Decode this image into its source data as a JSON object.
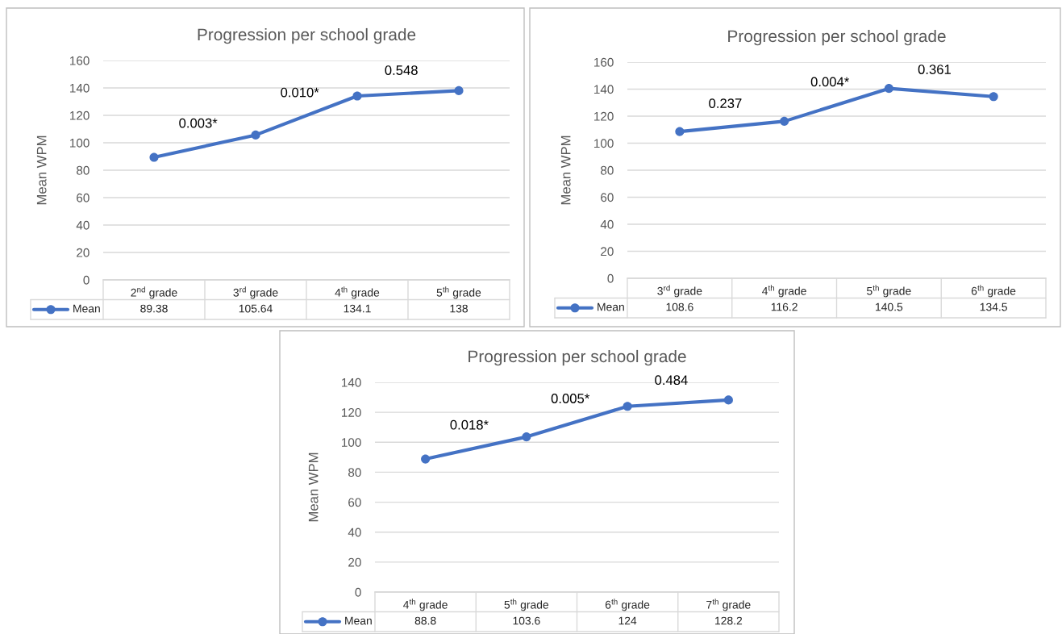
{
  "chart_data": [
    {
      "type": "line",
      "title": "Progression per school grade",
      "ylabel": "Mean WPM",
      "categories": [
        "2$^{nd}$ grade",
        "3$^{rd}$ grade",
        "4$^{th}$ grade",
        "5$^{th}$ grade"
      ],
      "series": [
        {
          "name": "Mean",
          "color": "#4472c4",
          "values": [
            89.38,
            105.64,
            134.1,
            138
          ]
        }
      ],
      "ylim": [
        0,
        160
      ],
      "yticks": [
        0,
        20,
        40,
        60,
        80,
        100,
        120,
        140,
        160
      ],
      "grid": "y",
      "marker": "circle",
      "data_labels": true,
      "legend": "bottom",
      "annotations": [
        "0.003*",
        "0.010*",
        "0.548"
      ]
    },
    {
      "type": "line",
      "title": "Progression per school grade",
      "ylabel": "Mean WPM",
      "categories": [
        "3$^{rd}$ grade",
        "4$^{th}$ grade",
        "5$^{th}$ grade",
        "6$^{th}$ grade"
      ],
      "series": [
        {
          "name": "Mean",
          "color": "#4472c4",
          "values": [
            108.6,
            116.2,
            140.5,
            134.5
          ]
        }
      ],
      "ylim": [
        0,
        160
      ],
      "yticks": [
        0,
        20,
        40,
        60,
        80,
        100,
        120,
        140,
        160
      ],
      "grid": "y",
      "marker": "circle",
      "data_labels": true,
      "legend": "bottom",
      "annotations": [
        "0.237",
        "0.004*",
        "0.361"
      ]
    },
    {
      "type": "line",
      "title": "Progression per school grade",
      "ylabel": "Mean WPM",
      "categories": [
        "4$^{th}$ grade",
        "5$^{th}$ grade",
        "6$^{th}$ grade",
        "7$^{th}$ grade"
      ],
      "series": [
        {
          "name": "Mean",
          "color": "#4472c4",
          "values": [
            88.8,
            103.6,
            124,
            128.2
          ]
        }
      ],
      "ylim": [
        0,
        140
      ],
      "yticks": [
        0,
        20,
        40,
        60,
        80,
        100,
        120,
        140
      ],
      "grid": "y",
      "marker": "circle",
      "data_labels": true,
      "legend": "bottom",
      "annotations": [
        "0.018*",
        "0.005*",
        "0.484"
      ]
    }
  ]
}
